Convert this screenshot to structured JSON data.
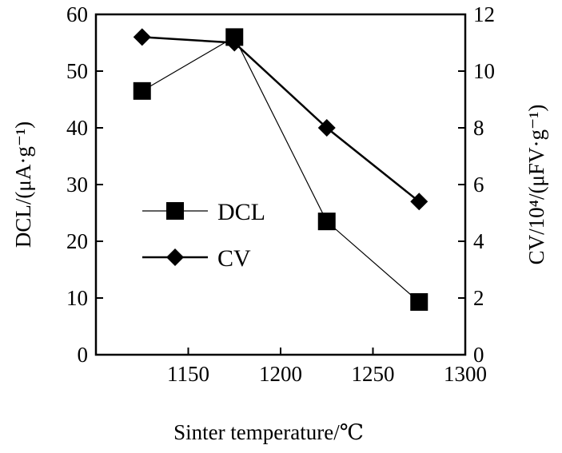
{
  "chart_data": {
    "type": "line",
    "x": [
      1125,
      1175,
      1225,
      1275
    ],
    "xlabel": "Sinter temperature/℃",
    "xlim": [
      1100,
      1300
    ],
    "xticks": [
      1150,
      1200,
      1250,
      1300
    ],
    "ylabel_left": "DCL/(μA·g⁻¹)",
    "ylim_left": [
      0,
      60
    ],
    "yticks_left": [
      0,
      10,
      20,
      30,
      40,
      50,
      60
    ],
    "ylabel_right": "CV/10⁴/(μFV·g⁻¹)",
    "ylim_right": [
      0,
      12
    ],
    "yticks_right": [
      0,
      2,
      4,
      6,
      8,
      10,
      12
    ],
    "series": [
      {
        "name": "DCL",
        "axis": "left",
        "marker": "square",
        "values": [
          46.5,
          56,
          23.5,
          9.3
        ],
        "color": "#000000"
      },
      {
        "name": "CV",
        "axis": "right",
        "marker": "diamond",
        "values": [
          11.2,
          11.0,
          8.0,
          5.4
        ],
        "color": "#000000"
      }
    ],
    "legend_position": "center-left",
    "grid": false
  }
}
